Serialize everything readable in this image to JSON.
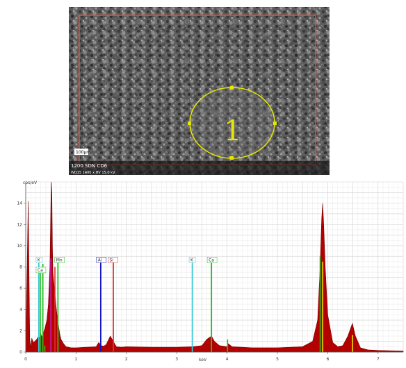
{
  "sem_image": {
    "region_label": "1",
    "scale_badge": "100µm",
    "caption_line1": "1200 SDN CD6",
    "caption_line2": "WD15  1400 x  HV  15.0 kV",
    "frame_color": "#e0553c",
    "region_color": "#e6e600"
  },
  "chart_data": {
    "type": "area",
    "ylabel": "cps/eV",
    "xlabel": "keV",
    "xlim": [
      0,
      7.5
    ],
    "ylim": [
      0,
      16
    ],
    "x_ticks": [
      "0",
      "1",
      "2",
      "3",
      "4",
      "5",
      "6",
      "7"
    ],
    "y_ticks": [
      "0",
      "2",
      "4",
      "6",
      "8",
      "10",
      "12",
      "14"
    ],
    "grid": true,
    "spectrum_color": "#b30000",
    "spectrum": {
      "x": [
        0.0,
        0.05,
        0.08,
        0.1,
        0.12,
        0.15,
        0.18,
        0.22,
        0.26,
        0.28,
        0.3,
        0.32,
        0.34,
        0.38,
        0.42,
        0.45,
        0.48,
        0.5,
        0.51,
        0.52,
        0.53,
        0.54,
        0.56,
        0.58,
        0.6,
        0.62,
        0.65,
        0.68,
        0.7,
        0.75,
        0.8,
        0.9,
        1.0,
        1.2,
        1.4,
        1.45,
        1.5,
        1.55,
        1.6,
        1.68,
        1.74,
        1.8,
        1.9,
        2.0,
        2.5,
        3.0,
        3.31,
        3.5,
        3.6,
        3.69,
        3.75,
        3.85,
        4.0,
        4.02,
        4.1,
        4.5,
        5.0,
        5.5,
        5.7,
        5.8,
        5.85,
        5.88,
        5.9,
        5.92,
        5.95,
        6.0,
        6.1,
        6.2,
        6.3,
        6.4,
        6.49,
        6.55,
        6.65,
        6.8,
        7.0,
        7.5
      ],
      "y": [
        0.0,
        14.2,
        1.2,
        0.4,
        1.3,
        0.9,
        1.0,
        1.2,
        1.5,
        1.3,
        1.7,
        1.4,
        1.6,
        2.2,
        3.0,
        4.5,
        8.0,
        14.0,
        16.0,
        15.0,
        10.0,
        7.5,
        6.5,
        5.5,
        4.5,
        3.5,
        2.5,
        1.6,
        1.2,
        0.8,
        0.5,
        0.4,
        0.4,
        0.45,
        0.5,
        0.9,
        0.6,
        0.55,
        0.7,
        1.5,
        1.0,
        0.5,
        0.45,
        0.5,
        0.45,
        0.45,
        0.5,
        0.6,
        1.2,
        1.5,
        1.0,
        0.6,
        0.5,
        0.8,
        0.5,
        0.4,
        0.4,
        0.5,
        1.0,
        3.0,
        8.0,
        12.5,
        14.0,
        12.0,
        8.0,
        3.5,
        0.9,
        0.5,
        0.6,
        1.5,
        2.7,
        1.5,
        0.4,
        0.2,
        0.15,
        0.1
      ]
    },
    "markers": [
      {
        "label": "K",
        "x": 0.26,
        "top": 8.8,
        "color": "#3ac8d8",
        "label_x": 0.22
      },
      {
        "label": "Ca",
        "x": 0.34,
        "top": 8.3,
        "color": "#20c020",
        "label_x": 0.22
      },
      {
        "label": "Mn",
        "x": 0.64,
        "top": 8.8,
        "color": "#20c020",
        "label_x": 0.59
      },
      {
        "label": "Al",
        "x": 1.49,
        "top": 8.8,
        "color": "#1010c8",
        "label_x": 1.42
      },
      {
        "label": "Si",
        "x": 1.74,
        "top": 8.8,
        "color": "#e03030",
        "label_x": 1.65
      },
      {
        "label": "K",
        "x": 3.31,
        "top": 8.8,
        "color": "#3ac8d8",
        "label_x": 3.26
      },
      {
        "label": "Ca",
        "x": 3.69,
        "top": 8.8,
        "color": "#20c020",
        "label_x": 3.62
      }
    ],
    "minor_markers": [
      {
        "x": 0.29,
        "top": 7.5,
        "color": "#20c020"
      },
      {
        "x": 0.5,
        "top": 8.8,
        "color": "#c81ec8"
      },
      {
        "x": 0.58,
        "top": 8.0,
        "color": "#e03030"
      },
      {
        "x": 0.38,
        "top": 0.6,
        "color": "#20c020"
      },
      {
        "x": 4.01,
        "top": 1.2,
        "color": "#20c020"
      },
      {
        "x": 5.85,
        "top": 9.0,
        "color": "#20c020"
      },
      {
        "x": 5.9,
        "top": 8.5,
        "color": "#e6e600"
      },
      {
        "x": 6.49,
        "top": 1.6,
        "color": "#e6e600"
      }
    ]
  }
}
